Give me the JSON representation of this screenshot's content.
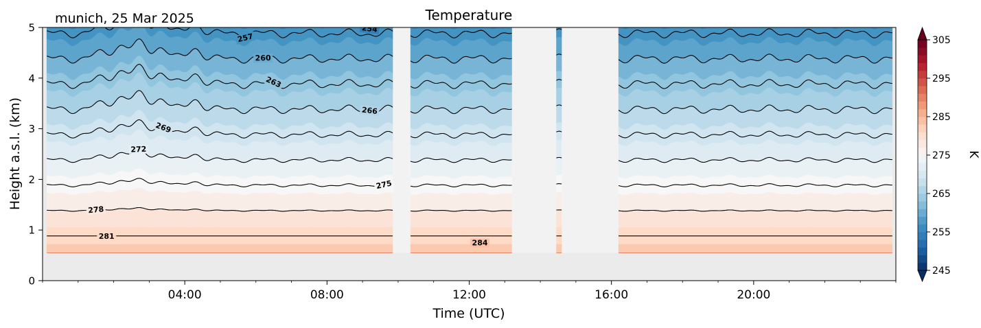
{
  "chart_data": {
    "type": "heatmap",
    "title": "Temperature",
    "subtitle": "munich, 25 Mar 2025",
    "xlabel": "Time (UTC)",
    "ylabel": "Height a.s.l. (km)",
    "x_unit": "hours UTC",
    "xlim": [
      0,
      24
    ],
    "ylim": [
      0,
      5
    ],
    "x_ticks": [
      {
        "value": 4,
        "label": "04:00"
      },
      {
        "value": 8,
        "label": "08:00"
      },
      {
        "value": 12,
        "label": "12:00"
      },
      {
        "value": 16,
        "label": "16:00"
      },
      {
        "value": 20,
        "label": "20:00"
      }
    ],
    "y_ticks": [
      {
        "value": 0,
        "label": "0"
      },
      {
        "value": 1,
        "label": "1"
      },
      {
        "value": 2,
        "label": "2"
      },
      {
        "value": 3,
        "label": "3"
      },
      {
        "value": 4,
        "label": "4"
      },
      {
        "value": 5,
        "label": "5"
      }
    ],
    "data_coverage": {
      "time_start": 0.12,
      "time_end": 23.9,
      "lowest_height": 0.55,
      "gaps": [
        {
          "start": 9.85,
          "end": 10.35
        },
        {
          "start": 13.2,
          "end": 14.45
        },
        {
          "start": 14.6,
          "end": 16.2
        }
      ]
    },
    "profile": {
      "surface_temperature": 283.0,
      "lapse_rate_per_km": 6.0,
      "reference_height": 0.55
    },
    "contour_levels": [
      254,
      257,
      260,
      263,
      266,
      269,
      272,
      275,
      278,
      281,
      284
    ],
    "contour_labels": [
      {
        "level": "254",
        "time": 9.2
      },
      {
        "level": "257",
        "time": 5.7
      },
      {
        "level": "260",
        "time": 6.2
      },
      {
        "level": "263",
        "time": 6.5
      },
      {
        "level": "266",
        "time": 9.2
      },
      {
        "level": "269",
        "time": 3.4
      },
      {
        "level": "272",
        "time": 2.7
      },
      {
        "level": "275",
        "time": 9.6
      },
      {
        "level": "278",
        "time": 1.5
      },
      {
        "level": "281",
        "time": 1.8
      },
      {
        "level": "284",
        "time": 12.3
      }
    ],
    "colorbar": {
      "label": "K",
      "range": [
        245,
        305
      ],
      "ticks": [
        {
          "value": 245,
          "label": "245"
        },
        {
          "value": 255,
          "label": "255"
        },
        {
          "value": 265,
          "label": "265"
        },
        {
          "value": 275,
          "label": "275"
        },
        {
          "value": 285,
          "label": "285"
        },
        {
          "value": 295,
          "label": "295"
        },
        {
          "value": 305,
          "label": "305"
        }
      ],
      "extend": "both",
      "colormap": "RdBu_r"
    },
    "colors": {
      "no_data": "#ebebeb",
      "contour_line": "#000000",
      "gap_overlay": "#ffffff"
    }
  }
}
